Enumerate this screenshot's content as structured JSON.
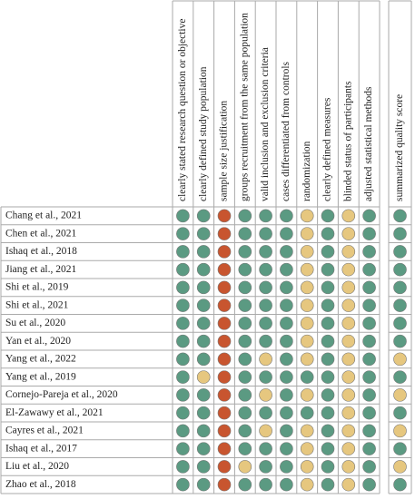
{
  "columns": [
    "clearly stated research question or objective",
    "clearly defined study population",
    "sample size justification",
    "groups recruitment from the same population",
    "valid inclusion and exclusion criteria",
    "cases differentiated from controls",
    "randomization",
    "clearly defined measures",
    "blinded status of participants",
    "adjusted statistical methods"
  ],
  "summary_column": "summarized quality score",
  "rows": [
    {
      "study": "Chang et al., 2021",
      "ratings": [
        "#5b9a82",
        "#5b9a82",
        "#c8552f",
        "#5b9a82",
        "#5b9a82",
        "#5b9a82",
        "#e6c77f",
        "#5b9a82",
        "#e6c77f",
        "#5b9a82"
      ],
      "summary": "#5b9a82"
    },
    {
      "study": "Chen et al., 2021",
      "ratings": [
        "#5b9a82",
        "#5b9a82",
        "#c8552f",
        "#5b9a82",
        "#5b9a82",
        "#5b9a82",
        "#e6c77f",
        "#5b9a82",
        "#e6c77f",
        "#5b9a82"
      ],
      "summary": "#5b9a82"
    },
    {
      "study": "Ishaq et al., 2018",
      "ratings": [
        "#5b9a82",
        "#5b9a82",
        "#c8552f",
        "#5b9a82",
        "#5b9a82",
        "#5b9a82",
        "#e6c77f",
        "#5b9a82",
        "#e6c77f",
        "#5b9a82"
      ],
      "summary": "#5b9a82"
    },
    {
      "study": "Jiang et al., 2021",
      "ratings": [
        "#5b9a82",
        "#5b9a82",
        "#c8552f",
        "#5b9a82",
        "#5b9a82",
        "#5b9a82",
        "#e6c77f",
        "#5b9a82",
        "#e6c77f",
        "#5b9a82"
      ],
      "summary": "#5b9a82"
    },
    {
      "study": "Shi et al., 2019",
      "ratings": [
        "#5b9a82",
        "#5b9a82",
        "#c8552f",
        "#5b9a82",
        "#5b9a82",
        "#5b9a82",
        "#e6c77f",
        "#5b9a82",
        "#e6c77f",
        "#5b9a82"
      ],
      "summary": "#5b9a82"
    },
    {
      "study": "Shi et al., 2021",
      "ratings": [
        "#5b9a82",
        "#5b9a82",
        "#c8552f",
        "#5b9a82",
        "#5b9a82",
        "#5b9a82",
        "#e6c77f",
        "#5b9a82",
        "#e6c77f",
        "#5b9a82"
      ],
      "summary": "#5b9a82"
    },
    {
      "study": "Su et al., 2020",
      "ratings": [
        "#5b9a82",
        "#5b9a82",
        "#c8552f",
        "#5b9a82",
        "#5b9a82",
        "#5b9a82",
        "#e6c77f",
        "#5b9a82",
        "#e6c77f",
        "#5b9a82"
      ],
      "summary": "#5b9a82"
    },
    {
      "study": "Yan et al., 2020",
      "ratings": [
        "#5b9a82",
        "#5b9a82",
        "#c8552f",
        "#5b9a82",
        "#5b9a82",
        "#5b9a82",
        "#e6c77f",
        "#5b9a82",
        "#e6c77f",
        "#5b9a82"
      ],
      "summary": "#5b9a82"
    },
    {
      "study": "Yang et al., 2022",
      "ratings": [
        "#5b9a82",
        "#5b9a82",
        "#c8552f",
        "#5b9a82",
        "#e6c77f",
        "#5b9a82",
        "#e6c77f",
        "#5b9a82",
        "#e6c77f",
        "#5b9a82"
      ],
      "summary": "#e6c77f"
    },
    {
      "study": "Yang et al., 2019",
      "ratings": [
        "#5b9a82",
        "#e6c77f",
        "#c8552f",
        "#5b9a82",
        "#5b9a82",
        "#5b9a82",
        "#5b9a82",
        "#5b9a82",
        "#e6c77f",
        "#5b9a82"
      ],
      "summary": "#5b9a82"
    },
    {
      "study": "Cornejo-Pareja et al., 2020",
      "ratings": [
        "#5b9a82",
        "#5b9a82",
        "#c8552f",
        "#5b9a82",
        "#e6c77f",
        "#5b9a82",
        "#e6c77f",
        "#5b9a82",
        "#e6c77f",
        "#5b9a82"
      ],
      "summary": "#e6c77f"
    },
    {
      "study": "El-Zawawy et al., 2021",
      "ratings": [
        "#5b9a82",
        "#5b9a82",
        "#c8552f",
        "#5b9a82",
        "#5b9a82",
        "#5b9a82",
        "#5b9a82",
        "#5b9a82",
        "#e6c77f",
        "#5b9a82"
      ],
      "summary": "#5b9a82"
    },
    {
      "study": "Cayres et al., 2021",
      "ratings": [
        "#5b9a82",
        "#5b9a82",
        "#c8552f",
        "#5b9a82",
        "#e6c77f",
        "#5b9a82",
        "#e6c77f",
        "#5b9a82",
        "#e6c77f",
        "#5b9a82"
      ],
      "summary": "#e6c77f"
    },
    {
      "study": "Ishaq et al., 2017",
      "ratings": [
        "#5b9a82",
        "#5b9a82",
        "#c8552f",
        "#5b9a82",
        "#5b9a82",
        "#5b9a82",
        "#e6c77f",
        "#5b9a82",
        "#e6c77f",
        "#5b9a82"
      ],
      "summary": "#5b9a82"
    },
    {
      "study": "Liu et al., 2020",
      "ratings": [
        "#5b9a82",
        "#5b9a82",
        "#c8552f",
        "#e6c77f",
        "#5b9a82",
        "#5b9a82",
        "#e6c77f",
        "#5b9a82",
        "#e6c77f",
        "#5b9a82"
      ],
      "summary": "#e6c77f"
    },
    {
      "study": "Zhao et al., 2018",
      "ratings": [
        "#5b9a82",
        "#5b9a82",
        "#c8552f",
        "#5b9a82",
        "#5b9a82",
        "#5b9a82",
        "#e6c77f",
        "#5b9a82",
        "#e6c77f",
        "#5b9a82"
      ],
      "summary": "#5b9a82"
    }
  ]
}
